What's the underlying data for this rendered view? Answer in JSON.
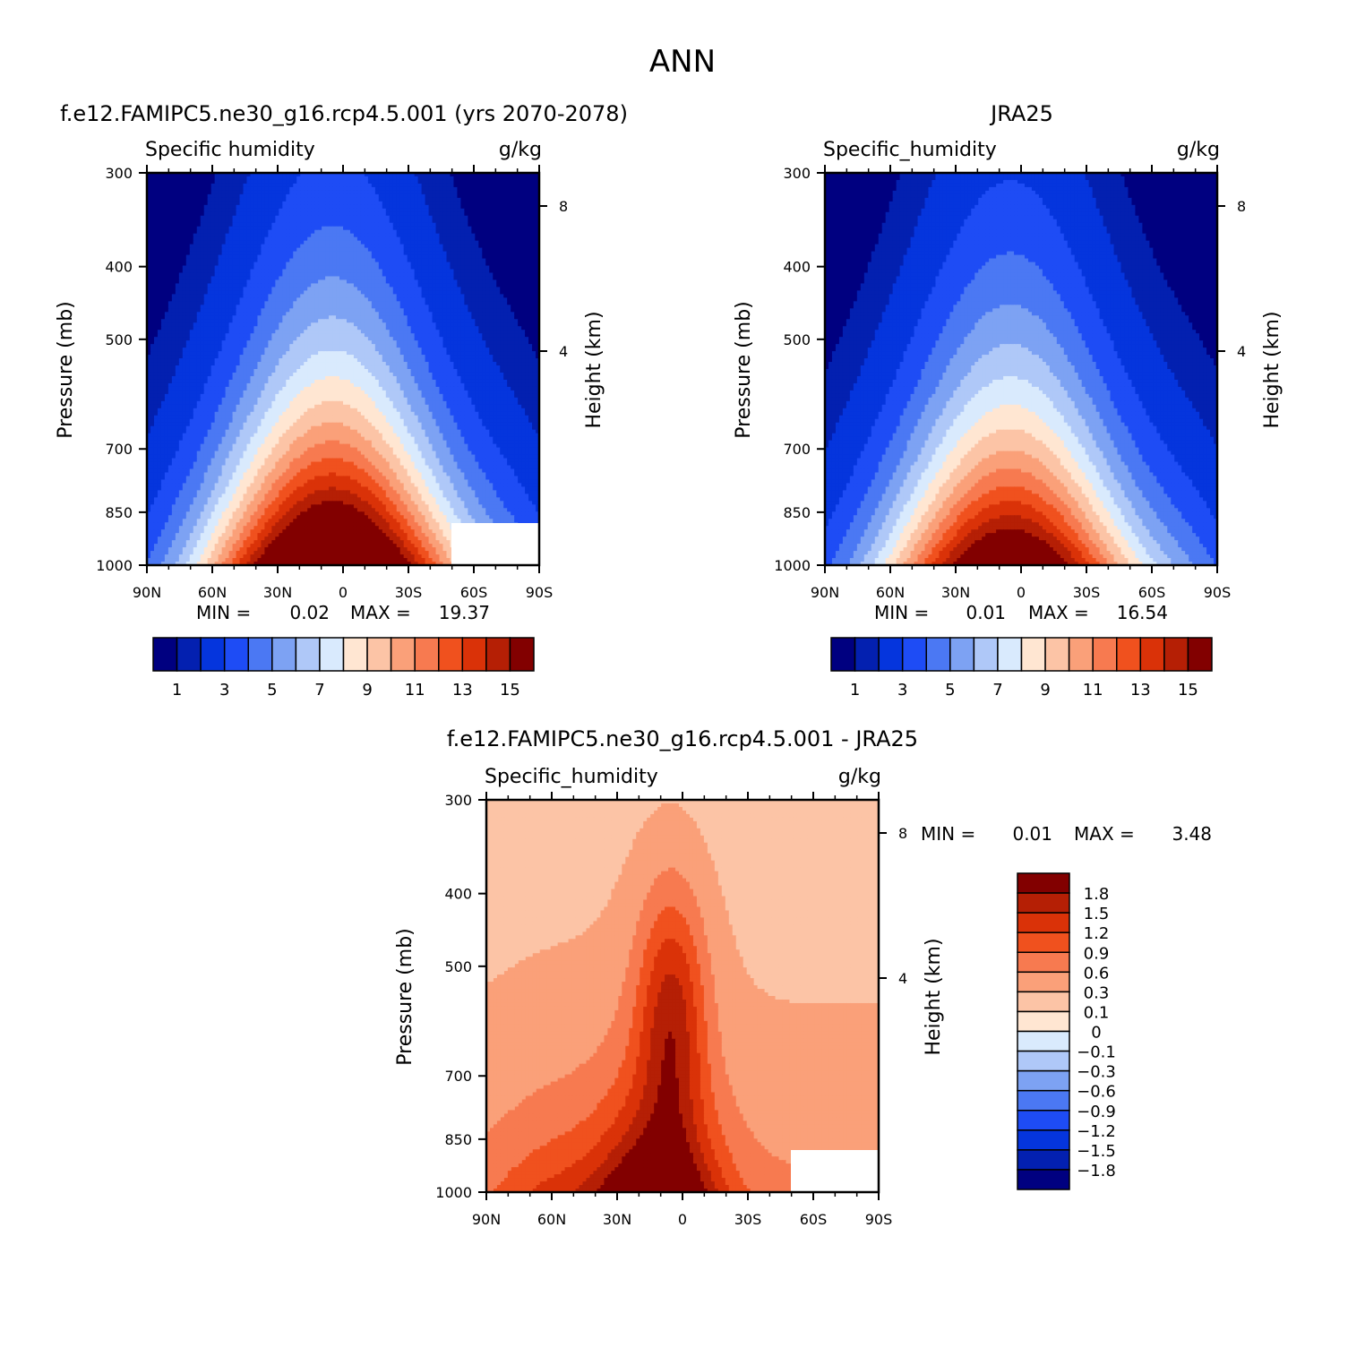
{
  "figure": {
    "title": "ANN"
  },
  "colors": {
    "abs_levels": [
      "#000080",
      "#0320B0",
      "#0535DD",
      "#1E4CF5",
      "#4B78F3",
      "#7DA2F3",
      "#AFC8F8",
      "#D9EAFD",
      "#FFE6D2",
      "#FCC4A6",
      "#FAA079",
      "#F77A50",
      "#F0511E",
      "#DA3208",
      "#B51F05",
      "#820000"
    ],
    "diff_levels": [
      "#000080",
      "#0320B0",
      "#0535DD",
      "#1E4CF5",
      "#4B78F3",
      "#7DA2F3",
      "#AFC8F8",
      "#D9EAFD",
      "#FFE6D2",
      "#FCC4A6",
      "#FAA079",
      "#F77A50",
      "#F0511E",
      "#DA3208",
      "#B51F05",
      "#820000"
    ]
  },
  "chart_data": [
    {
      "type": "heatmap",
      "panel": "model",
      "title": "f.e12.FAMIPC5.ne30_g16.rcp4.5.001 (yrs 2070-2078)",
      "variable": "Specific humidity",
      "units": "g/kg",
      "ylabel": "Pressure (mb)",
      "ylabel_right": "Height (km)",
      "x_ticks": [
        "90N",
        "60N",
        "30N",
        "0",
        "30S",
        "60S",
        "90S"
      ],
      "y_ticks": [
        "300",
        "400",
        "500",
        "700",
        "850",
        "1000"
      ],
      "y_ticks_right": [
        "8",
        "4"
      ],
      "ylim": [
        1000,
        300
      ],
      "y_scale": "log",
      "min_label": "MIN =",
      "min": "0.02",
      "max_label": "MAX =",
      "max": "19.37",
      "colorbar_labels": [
        "1",
        "3",
        "5",
        "7",
        "9",
        "11",
        "13",
        "15"
      ],
      "peak_lat": 5,
      "peak_value": 19.37,
      "top_contour_pressure": 350
    },
    {
      "type": "heatmap",
      "panel": "obs",
      "title": "JRA25",
      "variable": "Specific_humidity",
      "units": "g/kg",
      "ylabel": "Pressure (mb)",
      "ylabel_right": "Height (km)",
      "x_ticks": [
        "90N",
        "60N",
        "30N",
        "0",
        "30S",
        "60S",
        "90S"
      ],
      "y_ticks": [
        "300",
        "400",
        "500",
        "700",
        "850",
        "1000"
      ],
      "y_ticks_right": [
        "8",
        "4"
      ],
      "ylim": [
        1000,
        300
      ],
      "y_scale": "log",
      "min_label": "MIN =",
      "min": "0.01",
      "max_label": "MAX =",
      "max": "16.54",
      "colorbar_labels": [
        "1",
        "3",
        "5",
        "7",
        "9",
        "11",
        "13",
        "15"
      ],
      "peak_lat": 5,
      "peak_value": 16.54,
      "top_contour_pressure": 410
    },
    {
      "type": "heatmap",
      "panel": "difference",
      "title": "f.e12.FAMIPC5.ne30_g16.rcp4.5.001 - JRA25",
      "variable": "Specific_humidity",
      "units": "g/kg",
      "ylabel": "Pressure (mb)",
      "ylabel_right": "Height (km)",
      "x_ticks": [
        "90N",
        "60N",
        "30N",
        "0",
        "30S",
        "60S",
        "90S"
      ],
      "y_ticks": [
        "300",
        "400",
        "500",
        "700",
        "850",
        "1000"
      ],
      "y_ticks_right": [
        "8",
        "4"
      ],
      "ylim": [
        1000,
        300
      ],
      "y_scale": "log",
      "min_label": "MIN =",
      "min": "0.01",
      "max_label": "MAX =",
      "max": "3.48",
      "colorbar_labels": [
        "1.8",
        "1.5",
        "1.2",
        "0.9",
        "0.6",
        "0.3",
        "0.1",
        "0",
        "-0.1",
        "-0.3",
        "-0.6",
        "-0.9",
        "-1.2",
        "-1.5",
        "-1.8"
      ]
    }
  ]
}
